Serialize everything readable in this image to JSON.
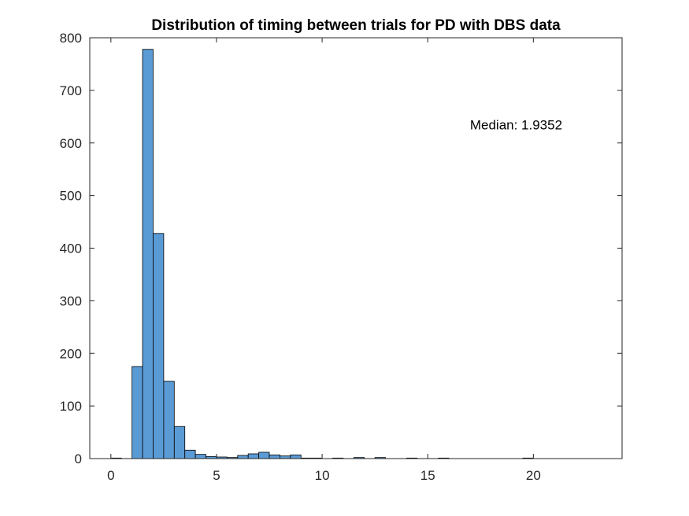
{
  "chart_data": {
    "type": "bar",
    "title": "Distribution of timing between trials for PD with DBS data",
    "xlabel": "",
    "ylabel": "",
    "xlim": [
      -1,
      24.2
    ],
    "ylim": [
      0,
      800
    ],
    "xticks": [
      0,
      5,
      10,
      15,
      20
    ],
    "yticks": [
      0,
      100,
      200,
      300,
      400,
      500,
      600,
      700,
      800
    ],
    "bin_width": 0.5,
    "bins": [
      {
        "x0": 0.0,
        "count": 1
      },
      {
        "x0": 1.0,
        "count": 175
      },
      {
        "x0": 1.5,
        "count": 778
      },
      {
        "x0": 2.0,
        "count": 428
      },
      {
        "x0": 2.5,
        "count": 147
      },
      {
        "x0": 3.0,
        "count": 61
      },
      {
        "x0": 3.5,
        "count": 16
      },
      {
        "x0": 4.0,
        "count": 8
      },
      {
        "x0": 4.5,
        "count": 4
      },
      {
        "x0": 5.0,
        "count": 3
      },
      {
        "x0": 5.5,
        "count": 2
      },
      {
        "x0": 6.0,
        "count": 6
      },
      {
        "x0": 6.5,
        "count": 9
      },
      {
        "x0": 7.0,
        "count": 12
      },
      {
        "x0": 7.5,
        "count": 7
      },
      {
        "x0": 8.0,
        "count": 5
      },
      {
        "x0": 8.5,
        "count": 7
      },
      {
        "x0": 9.0,
        "count": 1
      },
      {
        "x0": 9.5,
        "count": 1
      },
      {
        "x0": 10.5,
        "count": 1
      },
      {
        "x0": 11.5,
        "count": 2
      },
      {
        "x0": 12.5,
        "count": 2
      },
      {
        "x0": 14.0,
        "count": 1
      },
      {
        "x0": 15.5,
        "count": 1
      },
      {
        "x0": 19.5,
        "count": 1
      }
    ],
    "annotation": "Median: 1.9352",
    "annotation_pos": {
      "x": 17.0,
      "y": 635
    },
    "grid": false,
    "colors": {
      "bar_fill": "#5b9bd5",
      "bar_edge": "#000000",
      "axis": "#262626"
    }
  }
}
